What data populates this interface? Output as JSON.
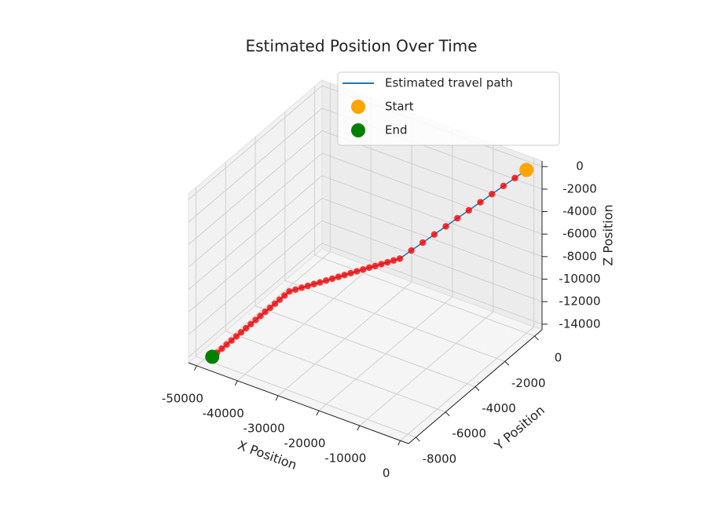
{
  "chart_data": {
    "type": "line3d",
    "title": "Estimated Position Over Time",
    "xlabel": "X Position",
    "ylabel": "Y Position",
    "zlabel": "Z Position",
    "xlim": [
      -52000,
      2000
    ],
    "ylim": [
      -8500,
      500
    ],
    "zlim": [
      -14500,
      500
    ],
    "xticks": [
      -50000,
      -40000,
      -30000,
      -20000,
      -10000,
      0
    ],
    "yticks": [
      -8000,
      -6000,
      -4000,
      -2000,
      0
    ],
    "zticks": [
      -14000,
      -12000,
      -10000,
      -8000,
      -6000,
      -4000,
      -2000,
      0
    ],
    "grid": true,
    "legend": "upper right",
    "series": [
      {
        "name": "Estimated travel path",
        "type": "line",
        "color": "#1f77b4",
        "marker_color": "red",
        "x": [
          0,
          -2000,
          -4000,
          -6000,
          -8000,
          -10000,
          -12000,
          -14000,
          -16000,
          -18000,
          -20000,
          -22000,
          -23000,
          -24000,
          -25000,
          -26000,
          -27000,
          -28000,
          -29000,
          -30000,
          -31000,
          -32000,
          -33000,
          -34000,
          -35000,
          -36000,
          -37000,
          -38000,
          -39000,
          -40000,
          -40500,
          -41000,
          -41500,
          -42000,
          -42500,
          -43000,
          -43500,
          -44000,
          -44500,
          -45000,
          -45500,
          -46000,
          -46500,
          -47000,
          -47500,
          -48000
        ],
        "y": [
          0,
          -230,
          -450,
          -680,
          -910,
          -1140,
          -1360,
          -1590,
          -1820,
          -2050,
          -2270,
          -2500,
          -2640,
          -2780,
          -2920,
          -3060,
          -3190,
          -3330,
          -3470,
          -3610,
          -3750,
          -3890,
          -4030,
          -4170,
          -4310,
          -4440,
          -4580,
          -4720,
          -4860,
          -5000,
          -5190,
          -5380,
          -5560,
          -5750,
          -5940,
          -6130,
          -6310,
          -6500,
          -6690,
          -6880,
          -7060,
          -7250,
          -7440,
          -7630,
          -7810,
          -8000
        ],
        "z": [
          0,
          -730,
          -1450,
          -2180,
          -2910,
          -3640,
          -4360,
          -5090,
          -5820,
          -6550,
          -7270,
          -8000,
          -8140,
          -8280,
          -8420,
          -8560,
          -8690,
          -8830,
          -8970,
          -9110,
          -9250,
          -9390,
          -9530,
          -9670,
          -9810,
          -9940,
          -10080,
          -10220,
          -10360,
          -10500,
          -10720,
          -10940,
          -11160,
          -11380,
          -11590,
          -11810,
          -12030,
          -12250,
          -12470,
          -12690,
          -12910,
          -13130,
          -13340,
          -13560,
          -13780,
          -14000
        ]
      },
      {
        "name": "Start",
        "type": "scatter",
        "color": "orange",
        "x": [
          0
        ],
        "y": [
          0
        ],
        "z": [
          0
        ]
      },
      {
        "name": "End",
        "type": "scatter",
        "color": "green",
        "x": [
          -48000
        ],
        "y": [
          -8000
        ],
        "z": [
          -14000
        ]
      }
    ]
  }
}
